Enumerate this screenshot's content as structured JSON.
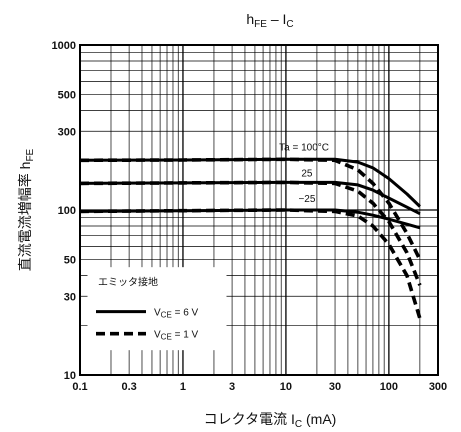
{
  "chart_data": {
    "type": "line",
    "title": "hFE – IC",
    "xlabel": "コレクタ電流 IC (mA)",
    "ylabel": "直流電流増幅率 hFE",
    "x_scale": "log",
    "y_scale": "log",
    "xlim": [
      0.1,
      300
    ],
    "ylim": [
      10,
      1000
    ],
    "x_ticks": [
      0.1,
      0.3,
      1,
      3,
      10,
      30,
      100,
      300
    ],
    "x_tick_labels": [
      "0.1",
      "0.3",
      "1",
      "3",
      "10",
      "30",
      "100",
      "300"
    ],
    "y_ticks": [
      10,
      30,
      50,
      100,
      300,
      500,
      1000
    ],
    "y_tick_labels": [
      "10",
      "30",
      "50",
      "100",
      "300",
      "500",
      "1000"
    ],
    "grid": true,
    "legend": {
      "title": "エミッタ接地",
      "placement": "bottom-left",
      "entries": [
        {
          "label": "VCE = 6 V",
          "style": "solid"
        },
        {
          "label": "VCE = 1 V",
          "style": "dashed"
        }
      ]
    },
    "series": [
      {
        "name": "Ta = 100°C",
        "vce": "6 V",
        "style": "solid",
        "x": [
          0.1,
          1,
          10,
          30,
          50,
          70,
          100,
          150,
          200
        ],
        "y": [
          200,
          201,
          203,
          203,
          195,
          180,
          155,
          125,
          105
        ]
      },
      {
        "name": "25",
        "vce": "6 V",
        "style": "solid",
        "x": [
          0.1,
          1,
          10,
          30,
          50,
          70,
          100,
          150,
          200
        ],
        "y": [
          145,
          146,
          147,
          147,
          142,
          132,
          118,
          104,
          95
        ]
      },
      {
        "name": "-25",
        "vce": "6 V",
        "style": "solid",
        "x": [
          0.1,
          1,
          10,
          30,
          50,
          70,
          100,
          150,
          200
        ],
        "y": [
          98,
          99,
          100,
          100,
          97,
          93,
          88,
          82,
          78
        ]
      },
      {
        "name": "Ta = 100°C",
        "vce": "1 V",
        "style": "dashed",
        "x": [
          0.1,
          1,
          10,
          30,
          50,
          70,
          100,
          150,
          200
        ],
        "y": [
          200,
          201,
          203,
          200,
          175,
          145,
          110,
          72,
          50
        ]
      },
      {
        "name": "25",
        "vce": "1 V",
        "style": "dashed",
        "x": [
          0.1,
          1,
          10,
          30,
          50,
          70,
          100,
          150,
          200
        ],
        "y": [
          145,
          146,
          147,
          145,
          130,
          110,
          85,
          55,
          35
        ]
      },
      {
        "name": "-25",
        "vce": "1 V",
        "style": "dashed",
        "x": [
          0.1,
          1,
          10,
          30,
          50,
          70,
          100,
          150,
          200
        ],
        "y": [
          98,
          99,
          100,
          98,
          92,
          80,
          62,
          40,
          22
        ]
      }
    ],
    "annotations": [
      {
        "text": "Ta = 100°C",
        "x": 15,
        "y": 230
      },
      {
        "text": "25",
        "x": 16,
        "y": 160
      },
      {
        "text": "−25",
        "x": 16,
        "y": 112
      }
    ]
  }
}
